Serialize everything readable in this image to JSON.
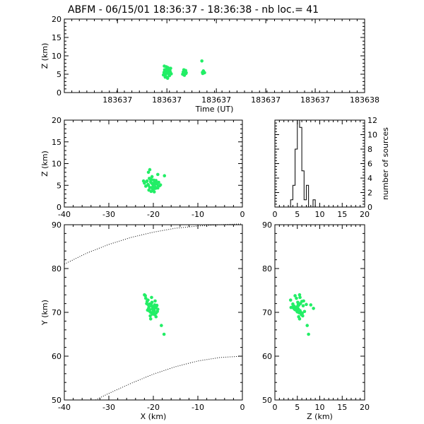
{
  "title": "ABFM - 06/15/01 18:36:37 - 18:36:38 - nb loc.=      41",
  "colors": {
    "points": "#22ee66",
    "axes": "#000000",
    "background": "#ffffff"
  },
  "chart_data": [
    {
      "id": "time-z",
      "type": "scatter",
      "xlabel": "Time (UT)",
      "ylabel": "Z (km)",
      "xticklabels": [
        "183637",
        "183637",
        "183637",
        "183637",
        "183637",
        "183638"
      ],
      "xlim": [
        0,
        1
      ],
      "ylim": [
        0,
        20
      ],
      "yticks": [
        0,
        5,
        10,
        15,
        20
      ],
      "x": [
        0.33,
        0.332,
        0.334,
        0.336,
        0.338,
        0.34,
        0.342,
        0.344,
        0.346,
        0.348,
        0.35,
        0.352,
        0.354,
        0.356,
        0.333,
        0.337,
        0.341,
        0.345,
        0.349,
        0.353,
        0.339,
        0.343,
        0.347,
        0.351,
        0.335,
        0.394,
        0.396,
        0.398,
        0.4,
        0.402,
        0.404,
        0.406,
        0.397,
        0.401,
        0.405,
        0.458,
        0.461,
        0.464,
        0.467,
        0.463,
        0.46
      ],
      "y": [
        4.8,
        5.5,
        6.2,
        4.2,
        5.0,
        7.0,
        5.4,
        3.9,
        6.0,
        5.2,
        4.6,
        5.8,
        6.6,
        5.1,
        7.2,
        4.4,
        5.7,
        6.8,
        4.9,
        5.5,
        6.3,
        4.1,
        5.3,
        6.1,
        5.9,
        5.0,
        5.6,
        6.2,
        4.7,
        5.3,
        6.0,
        5.4,
        4.9,
        5.8,
        5.2,
        8.6,
        5.2,
        5.7,
        5.4,
        5.9,
        5.5
      ]
    },
    {
      "id": "x-z",
      "type": "scatter",
      "xlabel": "",
      "ylabel": "Z (km)",
      "xlim": [
        -40,
        0
      ],
      "ylim": [
        0,
        20
      ],
      "xticks": [
        -40,
        -30,
        -20,
        -10,
        0
      ],
      "yticks": [
        0,
        5,
        10,
        15,
        20
      ],
      "x": [
        -22.0,
        -21.7,
        -21.4,
        -21.2,
        -21.0,
        -20.8,
        -20.6,
        -20.4,
        -20.2,
        -20.0,
        -19.8,
        -19.6,
        -19.4,
        -19.2,
        -19.0,
        -18.8,
        -18.6,
        -18.4,
        -21.5,
        -20.9,
        -20.3,
        -19.7,
        -19.1,
        -20.5,
        -20.1,
        -19.9,
        -19.5,
        -21.1,
        -20.7,
        -19.3,
        -18.9,
        -20.0,
        -19.6,
        -20.4,
        -22.2,
        -20.8,
        -21.1,
        -17.5,
        -19.0,
        -20.3,
        -19.8
      ],
      "y": [
        5.5,
        4.8,
        6.0,
        5.2,
        3.9,
        4.5,
        5.8,
        6.3,
        4.2,
        5.0,
        5.6,
        4.6,
        6.1,
        5.3,
        4.4,
        5.7,
        4.9,
        5.1,
        5.9,
        6.6,
        7.0,
        4.7,
        5.4,
        3.6,
        5.2,
        6.2,
        4.3,
        5.0,
        6.4,
        5.6,
        4.8,
        4.0,
        5.3,
        5.5,
        6.0,
        8.6,
        8.0,
        7.2,
        7.5,
        4.5,
        3.5
      ]
    },
    {
      "id": "z-histogram",
      "type": "bar",
      "xlabel": "",
      "ylabel": "number of sources",
      "xlim": [
        0,
        20
      ],
      "ylim": [
        0,
        12
      ],
      "xticks": [
        0,
        5,
        10,
        15,
        20
      ],
      "yticks": [
        0,
        2,
        4,
        6,
        8,
        10,
        12
      ],
      "bin_width": 0.5,
      "bin_starts": [
        3.5,
        4.0,
        4.5,
        5.0,
        5.5,
        6.0,
        6.5,
        7.0,
        7.5,
        8.0,
        8.5
      ],
      "counts": [
        1,
        3,
        8,
        12,
        11,
        5,
        1,
        3,
        0,
        0,
        1
      ]
    },
    {
      "id": "x-y",
      "type": "scatter",
      "xlabel": "X (km)",
      "ylabel": "Y (km)",
      "xlim": [
        -40,
        0
      ],
      "ylim": [
        50,
        90
      ],
      "xticks": [
        -40,
        -30,
        -20,
        -10,
        0
      ],
      "yticks": [
        50,
        60,
        70,
        80,
        90
      ],
      "x": [
        -22.0,
        -21.7,
        -21.4,
        -21.2,
        -21.0,
        -20.8,
        -20.6,
        -20.4,
        -20.2,
        -20.0,
        -19.8,
        -19.6,
        -19.4,
        -19.2,
        -19.0,
        -21.5,
        -20.9,
        -20.3,
        -19.7,
        -19.1,
        -20.5,
        -20.1,
        -19.9,
        -19.5,
        -21.1,
        -20.7,
        -19.3,
        -20.0,
        -19.6,
        -20.4,
        -21.3,
        -20.8,
        -19.4,
        -20.6,
        -20.2,
        -19.8,
        -19.7,
        -18.2,
        -17.6,
        -21.8,
        -21.2
      ],
      "y": [
        74.0,
        73.2,
        72.5,
        71.8,
        71.2,
        70.6,
        70.0,
        71.5,
        70.9,
        71.3,
        70.4,
        71.0,
        69.8,
        71.6,
        70.7,
        72.0,
        70.3,
        72.3,
        69.5,
        70.2,
        71.8,
        70.6,
        69.9,
        71.1,
        70.8,
        69.2,
        71.4,
        70.1,
        72.6,
        73.4,
        70.5,
        71.9,
        69.0,
        68.5,
        69.6,
        70.9,
        71.7,
        67.0,
        65.0,
        73.8,
        72.8
      ],
      "curves": [
        {
          "x": [
            -40,
            -35,
            -30,
            -25,
            -20,
            -15,
            -10,
            -5,
            0
          ],
          "y": [
            81.0,
            83.5,
            85.5,
            87.1,
            88.3,
            89.2,
            89.7,
            90.0,
            90.2
          ]
        },
        {
          "x": [
            -33,
            -30,
            -25,
            -20,
            -15,
            -10,
            -5,
            0
          ],
          "y": [
            50.0,
            51.5,
            53.8,
            55.9,
            57.6,
            58.9,
            59.7,
            60.0
          ]
        }
      ]
    },
    {
      "id": "z-y",
      "type": "scatter",
      "xlabel": "Z (km)",
      "ylabel": "",
      "xlim": [
        0,
        20
      ],
      "ylim": [
        50,
        90
      ],
      "xticks": [
        0,
        5,
        10,
        15,
        20
      ],
      "yticks": [
        50,
        60,
        70,
        80,
        90
      ],
      "x": [
        5.5,
        4.8,
        6.0,
        5.2,
        3.9,
        4.5,
        5.8,
        6.3,
        4.2,
        5.0,
        5.6,
        4.6,
        6.1,
        5.3,
        4.4,
        5.7,
        4.9,
        5.1,
        5.9,
        6.6,
        7.0,
        4.7,
        5.4,
        3.6,
        5.2,
        6.2,
        4.3,
        5.0,
        6.4,
        5.6,
        4.8,
        4.0,
        5.3,
        5.5,
        6.0,
        8.6,
        8.0,
        7.2,
        7.5,
        4.5,
        3.5
      ],
      "y": [
        74.0,
        73.2,
        72.5,
        71.8,
        71.2,
        70.6,
        70.0,
        71.5,
        70.9,
        71.3,
        70.4,
        71.0,
        69.8,
        71.6,
        70.7,
        72.0,
        70.3,
        72.3,
        69.5,
        70.2,
        71.8,
        70.6,
        69.9,
        71.1,
        70.8,
        69.2,
        71.4,
        70.1,
        72.6,
        73.4,
        70.5,
        71.9,
        69.0,
        68.5,
        69.6,
        70.9,
        71.7,
        67.0,
        65.0,
        73.8,
        72.8
      ]
    }
  ]
}
